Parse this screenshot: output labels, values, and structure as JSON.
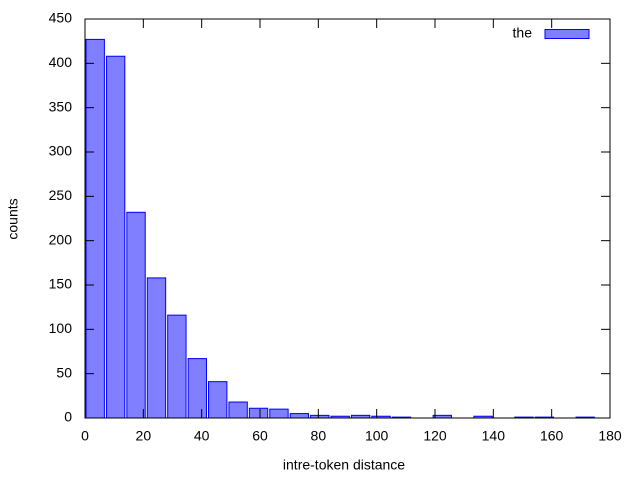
{
  "chart_data": {
    "type": "histogram",
    "xlabel": "intre-token distance",
    "ylabel": "counts",
    "bins": [
      0,
      7,
      14,
      21,
      28,
      35,
      42,
      49,
      56,
      63,
      70,
      77,
      84,
      91,
      98,
      105,
      112,
      119,
      126,
      133,
      140,
      147,
      154,
      161,
      168,
      175
    ],
    "series": [
      {
        "name": "the",
        "color": "#7f7fff",
        "values": [
          427,
          408,
          232,
          158,
          116,
          67,
          41,
          18,
          11,
          10,
          5,
          3,
          2,
          3,
          2,
          1,
          0,
          3,
          0,
          2,
          0,
          1,
          1,
          0,
          1
        ]
      }
    ],
    "xlim": [
      0,
      180
    ],
    "xticks": [
      0,
      20,
      40,
      60,
      80,
      100,
      120,
      140,
      160,
      180
    ],
    "ylim": [
      0,
      450
    ],
    "yticks": [
      0,
      50,
      100,
      150,
      200,
      250,
      300,
      350,
      400,
      450
    ],
    "legend": "top-right"
  }
}
